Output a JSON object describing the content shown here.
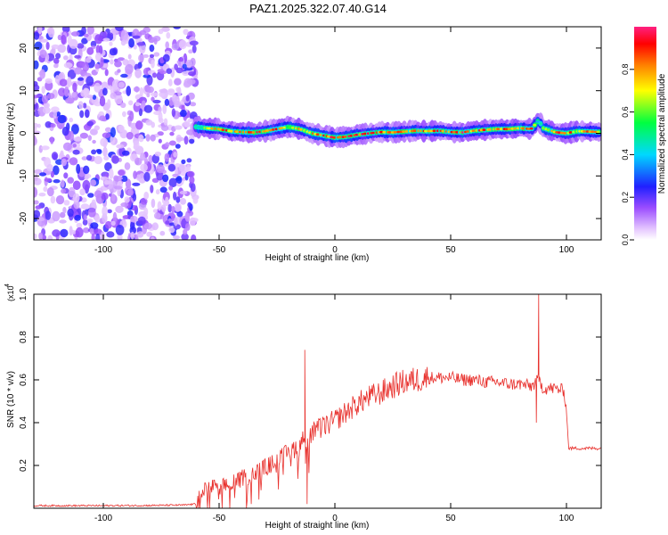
{
  "title": "PAZ1.2025.322.07.40.G14",
  "chart_data": [
    {
      "type": "heatmap",
      "name": "spectrogram",
      "xlabel": "Height of straight line (km)",
      "ylabel": "Frequency (Hz)",
      "xlim": [
        -130,
        115
      ],
      "ylim": [
        -25,
        25
      ],
      "x_ticks": [
        -100,
        -50,
        0,
        50,
        100
      ],
      "y_ticks": [
        -20,
        -10,
        0,
        10,
        20
      ],
      "noise_region_x": [
        -130,
        -60
      ],
      "ridge": {
        "x": [
          -60,
          -55,
          -50,
          -45,
          -40,
          -35,
          -30,
          -25,
          -20,
          -15,
          -10,
          -5,
          0,
          5,
          10,
          15,
          20,
          25,
          30,
          35,
          40,
          45,
          50,
          55,
          60,
          65,
          70,
          75,
          80,
          85,
          88,
          90,
          95,
          100,
          105,
          110,
          115
        ],
        "frequency": [
          1.5,
          1.2,
          1.0,
          0.5,
          0.3,
          0.2,
          0.5,
          1.0,
          1.5,
          1.0,
          0.0,
          -0.5,
          -1.0,
          -0.8,
          -0.3,
          0.0,
          0.3,
          0.2,
          0.4,
          0.6,
          0.5,
          0.6,
          0.3,
          0.2,
          0.6,
          0.8,
          1.0,
          1.0,
          1.2,
          1.0,
          3.0,
          1.2,
          0.3,
          0.0,
          0.5,
          0.4,
          0.3
        ],
        "amplitude": [
          0.5,
          0.75,
          0.85,
          0.9,
          0.95,
          0.95,
          0.9,
          0.9,
          0.7,
          0.8,
          0.9,
          0.95,
          0.95,
          0.95,
          0.95,
          0.95,
          0.95,
          0.95,
          0.95,
          0.9,
          0.9,
          0.9,
          0.95,
          0.95,
          0.9,
          0.9,
          0.9,
          0.9,
          0.85,
          0.9,
          0.4,
          0.7,
          0.95,
          0.9,
          0.85,
          0.85,
          0.85
        ]
      },
      "colorbar": {
        "label": "Normalized spectral amplitude",
        "ticks": [
          0.0,
          0.2,
          0.4,
          0.6,
          0.8
        ],
        "range": [
          0.0,
          1.0
        ]
      }
    },
    {
      "type": "line",
      "name": "snr",
      "xlabel": "Height of straight line (km)",
      "ylabel": "SNR (10 * v/v)",
      "multiplier_label": "(x10",
      "multiplier_exponent": "4",
      "xlim": [
        -130,
        115
      ],
      "ylim": [
        0,
        1.0
      ],
      "x_ticks": [
        -100,
        -50,
        0,
        50,
        100
      ],
      "y_ticks": [
        0.2,
        0.4,
        0.6,
        0.8,
        1.0
      ],
      "series_color": "#e8302c",
      "envelope": {
        "x": [
          -130,
          -100,
          -80,
          -65,
          -60,
          -58,
          -55,
          -50,
          -45,
          -40,
          -35,
          -30,
          -25,
          -20,
          -15,
          -13,
          -12,
          -10,
          -5,
          0,
          5,
          10,
          15,
          20,
          25,
          30,
          35,
          40,
          45,
          50,
          55,
          60,
          65,
          70,
          75,
          80,
          85,
          88,
          90,
          95,
          99,
          100,
          101,
          105,
          110,
          115
        ],
        "snr": [
          0.012,
          0.012,
          0.013,
          0.015,
          0.02,
          0.06,
          0.1,
          0.1,
          0.11,
          0.14,
          0.16,
          0.19,
          0.22,
          0.26,
          0.3,
          0.33,
          0.3,
          0.35,
          0.38,
          0.41,
          0.45,
          0.49,
          0.52,
          0.54,
          0.57,
          0.59,
          0.6,
          0.61,
          0.61,
          0.61,
          0.6,
          0.6,
          0.59,
          0.59,
          0.58,
          0.58,
          0.57,
          0.6,
          0.56,
          0.56,
          0.55,
          0.45,
          0.28,
          0.28,
          0.28,
          0.28
        ]
      },
      "spikes": [
        {
          "x": -13,
          "snr": 0.74
        },
        {
          "x": -12,
          "snr": 0.02
        },
        {
          "x": 88,
          "snr": 1.0
        },
        {
          "x": 87,
          "snr": 0.4
        }
      ]
    }
  ]
}
